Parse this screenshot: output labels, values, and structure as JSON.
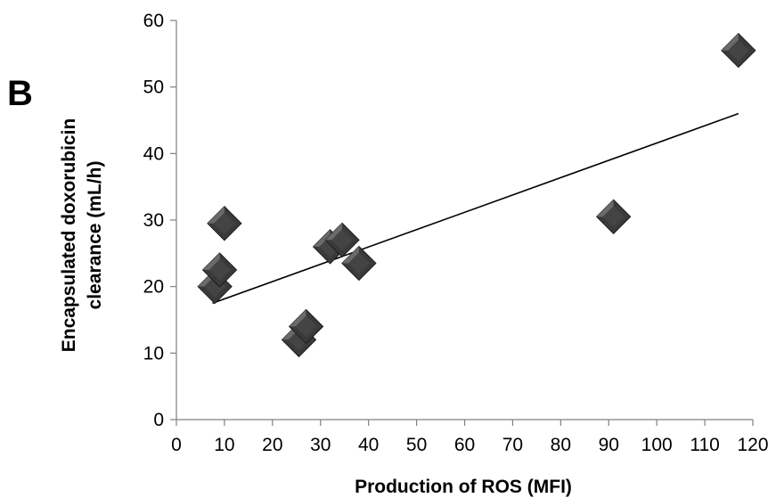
{
  "panel_label": "B",
  "chart_data": {
    "type": "scatter",
    "xlabel": "Production of ROS (MFI)",
    "ylabel_lines": [
      "Encapsulated doxorubicin",
      "clearance (mL/h)"
    ],
    "xlim": [
      0,
      120
    ],
    "ylim": [
      0,
      60
    ],
    "x_ticks": [
      0,
      10,
      20,
      30,
      40,
      50,
      60,
      70,
      80,
      90,
      100,
      110,
      120
    ],
    "y_ticks": [
      0,
      10,
      20,
      30,
      40,
      50,
      60
    ],
    "points": [
      {
        "x": 8,
        "y": 20
      },
      {
        "x": 9,
        "y": 22.5
      },
      {
        "x": 10,
        "y": 29.5
      },
      {
        "x": 25.5,
        "y": 12
      },
      {
        "x": 27,
        "y": 14
      },
      {
        "x": 32,
        "y": 26
      },
      {
        "x": 34.5,
        "y": 27
      },
      {
        "x": 38,
        "y": 23.5
      },
      {
        "x": 91,
        "y": 30.5
      },
      {
        "x": 117,
        "y": 55.5
      }
    ],
    "trendline": {
      "x_start": 7.5,
      "y_start": 17.5,
      "x_end": 117,
      "y_end": 46
    },
    "marker_color": "#3a3a3a",
    "line_color": "#000000",
    "grid": false,
    "legend": "none"
  }
}
